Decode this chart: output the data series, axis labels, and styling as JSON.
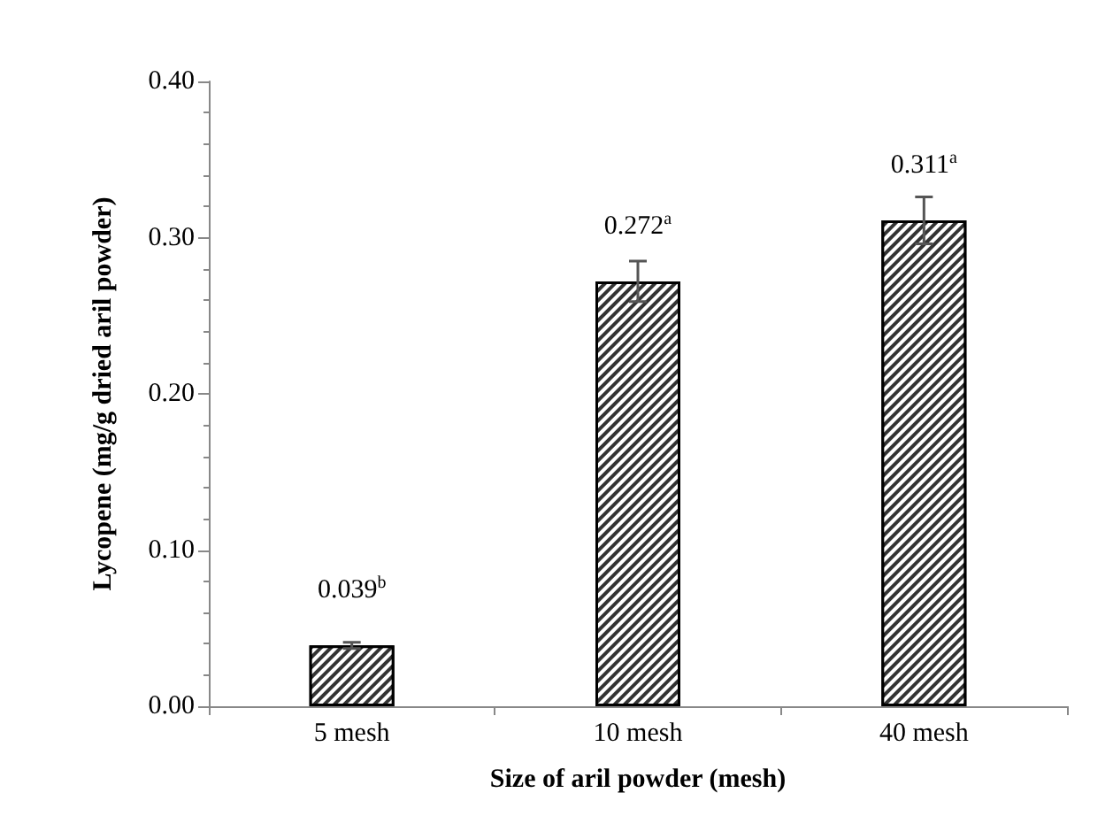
{
  "chart_data": {
    "type": "bar",
    "xlabel": "Size of aril powder (mesh)",
    "ylabel": "Lycopene (mg/g dried aril powder)",
    "categories": [
      "5 mesh",
      "10 mesh",
      "40 mesh"
    ],
    "values": [
      0.039,
      0.272,
      0.311
    ],
    "errors": [
      0.002,
      0.013,
      0.015
    ],
    "value_labels": [
      "0.039$^{b}$",
      "0.272$^{a}$",
      "0.311$^{a}$"
    ],
    "color": "#333333",
    "ylim": [
      0,
      0.4
    ],
    "yticks": [
      {
        "value": 0,
        "label": "0.00"
      },
      {
        "value": 0.1,
        "label": "0.10"
      },
      {
        "value": 0.2,
        "label": "0.20"
      },
      {
        "value": 0.3,
        "label": "0.30"
      },
      {
        "value": 0.4,
        "label": "0.40"
      }
    ],
    "grid": false
  }
}
